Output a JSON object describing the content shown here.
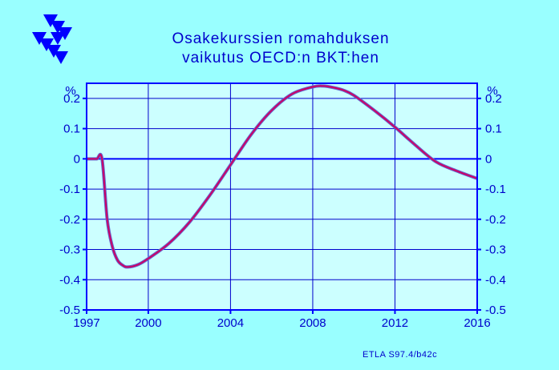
{
  "logo": {
    "name": "ETLA",
    "color": "#0000ff"
  },
  "chart_data": {
    "type": "line",
    "title": [
      "Osakekurssien  romahduksen",
      "vaikutus  OECD:n  BKT:hen"
    ],
    "y_unit_label_left": "%",
    "y_unit_label_right": "%",
    "xlim": [
      1997,
      2016
    ],
    "ylim": [
      -0.5,
      0.25
    ],
    "x_ticks": [
      {
        "value": 1997,
        "label": "1997"
      },
      {
        "value": 2000,
        "label": "2000"
      },
      {
        "value": 2004,
        "label": "2004"
      },
      {
        "value": 2008,
        "label": "2008"
      },
      {
        "value": 2012,
        "label": "2012"
      },
      {
        "value": 2016,
        "label": "2016"
      }
    ],
    "y_ticks_left": [
      {
        "value": 0.2,
        "label": "0.2"
      },
      {
        "value": 0.1,
        "label": "0.1"
      },
      {
        "value": 0,
        "label": "0"
      },
      {
        "value": -0.1,
        "label": "-0.1"
      },
      {
        "value": -0.2,
        "label": "-0.2"
      },
      {
        "value": -0.3,
        "label": "-0.3"
      },
      {
        "value": -0.4,
        "label": "-0.4"
      },
      {
        "value": -0.5,
        "label": "-0.5"
      }
    ],
    "y_ticks_right": [
      {
        "value": 0.2,
        "label": "0.2"
      },
      {
        "value": 0.1,
        "label": "0.1"
      },
      {
        "value": 0,
        "label": "0"
      },
      {
        "value": -0.1,
        "label": "-0.1"
      },
      {
        "value": -0.2,
        "label": "-0.2"
      },
      {
        "value": -0.3,
        "label": "-0.3"
      },
      {
        "value": -0.4,
        "label": "-0.4"
      },
      {
        "value": -0.5,
        "label": "-0.5"
      }
    ],
    "grid": true,
    "series": [
      {
        "color": "#cc0066",
        "x": [
          1997,
          1997.25,
          1997.5,
          1997.75,
          1998,
          1998.25,
          1998.5,
          1998.75,
          1999,
          1999.5,
          2000,
          2001,
          2002,
          2003,
          2004,
          2005,
          2006,
          2007,
          2008,
          2008.5,
          2009,
          2009.5,
          2010,
          2011,
          2012,
          2013,
          2014,
          2015,
          2016
        ],
        "y": [
          0,
          0,
          0,
          0,
          -0.2,
          -0.29,
          -0.335,
          -0.352,
          -0.358,
          -0.35,
          -0.33,
          -0.28,
          -0.21,
          -0.12,
          -0.02,
          0.08,
          0.16,
          0.215,
          0.238,
          0.241,
          0.236,
          0.227,
          0.21,
          0.16,
          0.105,
          0.045,
          -0.01,
          -0.04,
          -0.065
        ]
      }
    ],
    "zero_line": {
      "value": 0,
      "color": "#0000ff"
    }
  },
  "footer": {
    "credit": "ETLA S97.4/b42c"
  },
  "colors": {
    "background": "#99ffff",
    "plot_background": "#ccffff",
    "axis": "#0000ff",
    "text": "#0000cc",
    "grid": "#0000cc"
  }
}
